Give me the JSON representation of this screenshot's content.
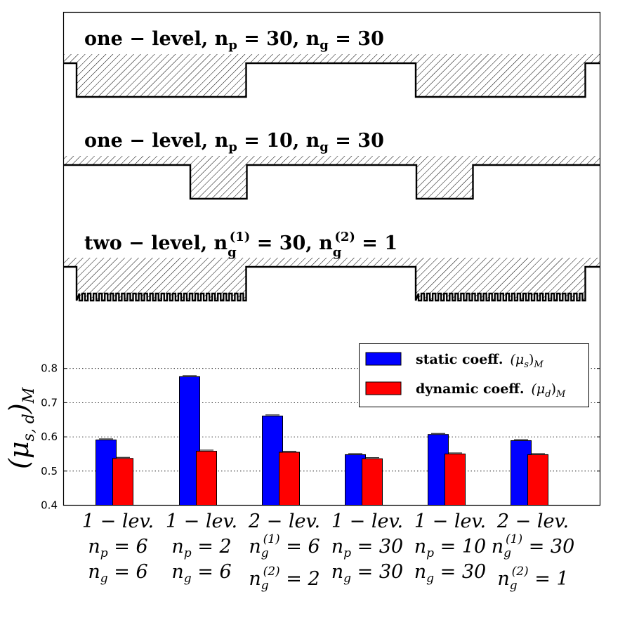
{
  "chart_data": {
    "type": "bar",
    "ylabel_base": "(μ",
    "ylabel_sub": "s, d",
    "ylabel_close": ")",
    "ylabel_sub2": "M",
    "ylim": [
      0.4,
      0.9
    ],
    "yticks": [
      0.4,
      0.5,
      0.6,
      0.7,
      0.8
    ],
    "ytick_labels": [
      "0.4",
      "0.5",
      "0.6",
      "0.7",
      "0.8"
    ],
    "grid": "dotted horizontal",
    "legend_position": "top-right",
    "categories": [
      {
        "lines": [
          {
            "t": "1 − lev."
          },
          {
            "t": "n",
            "s": "p",
            "r": " = 6"
          },
          {
            "t": "n",
            "s": "g",
            "r": " = 6"
          }
        ]
      },
      {
        "lines": [
          {
            "t": "1 − lev."
          },
          {
            "t": "n",
            "s": "p",
            "r": " = 2"
          },
          {
            "t": "n",
            "s": "g",
            "r": " = 6"
          }
        ]
      },
      {
        "lines": [
          {
            "t": "2 − lev."
          },
          {
            "t": "n",
            "s": "g",
            "sup": "(1)",
            "r": " = 6"
          },
          {
            "t": "n",
            "s": "g",
            "sup": "(2)",
            "r": " = 2"
          }
        ]
      },
      {
        "lines": [
          {
            "t": "1 − lev."
          },
          {
            "t": "n",
            "s": "p",
            "r": " = 30"
          },
          {
            "t": "n",
            "s": "g",
            "r": " = 30"
          }
        ]
      },
      {
        "lines": [
          {
            "t": "1 − lev."
          },
          {
            "t": "n",
            "s": "p",
            "r": " = 10"
          },
          {
            "t": "n",
            "s": "g",
            "r": " = 30"
          }
        ]
      },
      {
        "lines": [
          {
            "t": "2 − lev."
          },
          {
            "t": "n",
            "s": "g",
            "sup": "(1)",
            "r": " = 30"
          },
          {
            "t": "n",
            "s": "g",
            "sup": "(2)",
            "r": " = 1"
          }
        ]
      }
    ],
    "series": [
      {
        "name": "static coeff.",
        "math": "(μ",
        "math_sub": "s",
        "math_close": ")",
        "math_sub2": "M",
        "color": "#0000ff",
        "values": [
          0.591,
          0.776,
          0.661,
          0.548,
          0.607,
          0.589
        ]
      },
      {
        "name": "dynamic coeff.",
        "math": "(μ",
        "math_sub": "d",
        "math_close": ")",
        "math_sub2": "M",
        "color": "#ff0000",
        "values": [
          0.537,
          0.558,
          0.555,
          0.536,
          0.55,
          0.548
        ]
      }
    ]
  },
  "profiles": [
    {
      "title_a": "one − level,  n",
      "title_a_sub": "p",
      "title_b": " = 30,  n",
      "title_b_sub": "g",
      "title_c": " = 30",
      "np": 30,
      "ng": 30,
      "levels": 1
    },
    {
      "title_a": "one − level,  n",
      "title_a_sub": "p",
      "title_b": " = 10,  n",
      "title_b_sub": "g",
      "title_c": " = 30",
      "np": 10,
      "ng": 30,
      "levels": 1
    },
    {
      "title_a": "two − level,  n",
      "title_a_sub": "g",
      "title_a_sup": "(1)",
      "title_b": " = 30,  n",
      "title_b_sub": "g",
      "title_b_sup": "(2)",
      "title_c": " = 1",
      "np": 30,
      "ng": 30,
      "levels": 2
    }
  ],
  "colors": {
    "static": "#0000ff",
    "dynamic": "#ff0000",
    "grid": "#000000"
  }
}
